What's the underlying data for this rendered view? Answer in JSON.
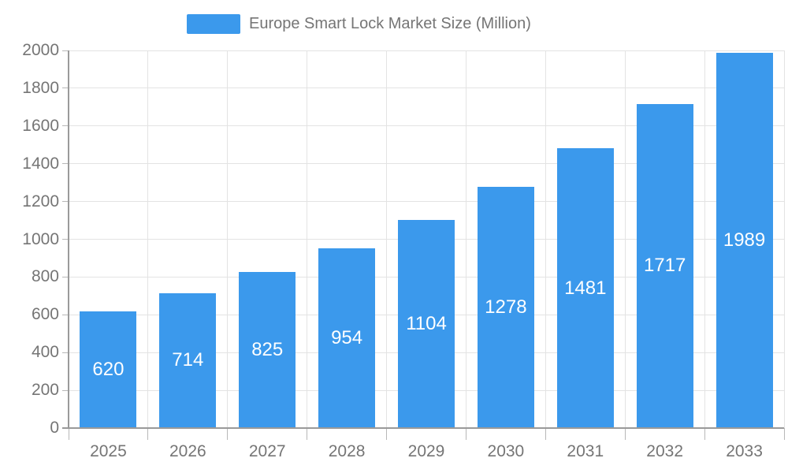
{
  "legend": {
    "label": "Europe Smart Lock Market Size (Million)"
  },
  "chart_data": {
    "type": "bar",
    "title": "Europe Smart Lock Market Size (Million)",
    "categories": [
      "2025",
      "2026",
      "2027",
      "2028",
      "2029",
      "2030",
      "2031",
      "2032",
      "2033"
    ],
    "values": [
      620,
      714,
      825,
      954,
      1104,
      1278,
      1481,
      1717,
      1989
    ],
    "xlabel": "",
    "ylabel": "",
    "ylim": [
      0,
      2000
    ],
    "ytick_step": 200,
    "ytick_labels": [
      "0",
      "200",
      "400",
      "600",
      "800",
      "1000",
      "1200",
      "1400",
      "1600",
      "1800",
      "2000"
    ],
    "grid": true,
    "legend_position": "top-center",
    "bar_value_labels_inside": true
  },
  "colors": {
    "bar": "#3b99ec",
    "bar_label": "#ffffff",
    "axis": "#9a9a9a",
    "tick": "#b8b8b8",
    "grid": "#e3e3e3",
    "text": "#757575",
    "background": "#ffffff"
  }
}
